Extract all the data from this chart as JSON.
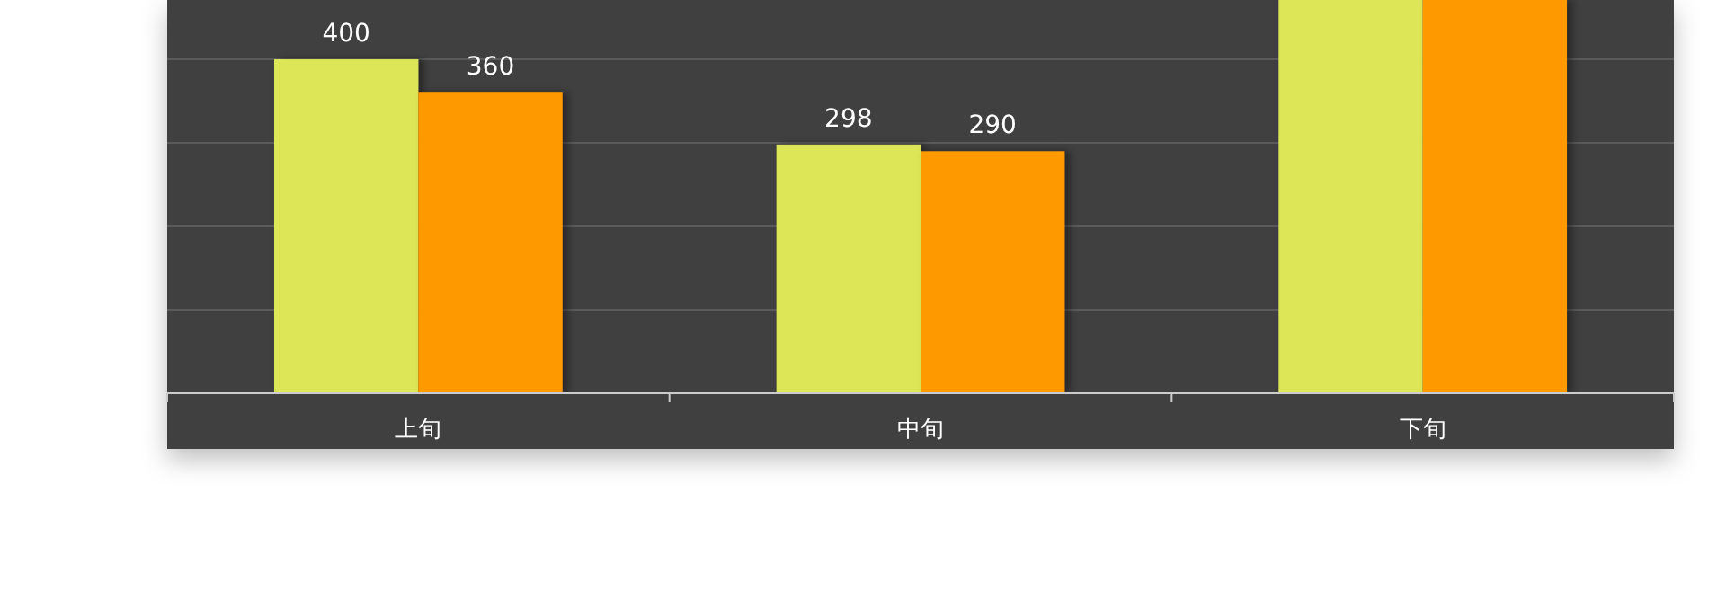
{
  "chart_data": {
    "type": "bar",
    "categories": [
      "上旬",
      "中旬",
      "下旬"
    ],
    "series": [
      {
        "color": "#dde657",
        "values": [
          400,
          298,
          471
        ],
        "value_labels": [
          "400",
          "298",
          null
        ]
      },
      {
        "color": "#ff9900",
        "values": [
          360,
          290,
          471
        ],
        "value_labels": [
          "360",
          "290",
          null
        ]
      }
    ],
    "ylim": [
      0,
      471
    ],
    "yticks": [
      {
        "value": 100,
        "label": null
      },
      {
        "value": 200,
        "label": null
      },
      {
        "value": 300,
        "label": null
      },
      {
        "value": 400,
        "label": null
      }
    ],
    "tick_labels": "x",
    "grid": "y"
  }
}
